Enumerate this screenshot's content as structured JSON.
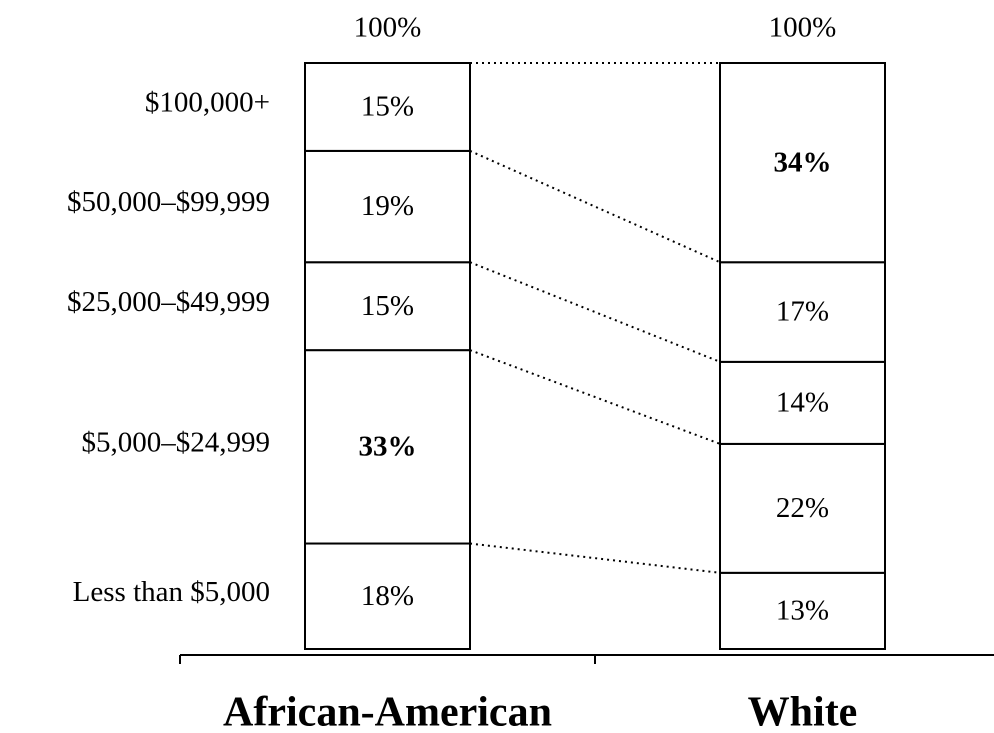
{
  "chart_data": {
    "type": "stacked_bar",
    "categories": [
      "African-American",
      "White"
    ],
    "series": [
      {
        "name": "Less than $5,000",
        "color": "#ffffff",
        "values": [
          18,
          13
        ],
        "value_labels": [
          "18%",
          "13%"
        ]
      },
      {
        "name": "$5,000–$24,999",
        "color": "#ffffff",
        "values": [
          33,
          22
        ],
        "value_labels": [
          "33%",
          "22%"
        ]
      },
      {
        "name": "$25,000–$49,999",
        "color": "#ffffff",
        "values": [
          15,
          14
        ],
        "value_labels": [
          "15%",
          "14%"
        ]
      },
      {
        "name": "$50,000–$99,999",
        "color": "#ffffff",
        "values": [
          19,
          17
        ],
        "value_labels": [
          "19%",
          "17%"
        ]
      },
      {
        "name": "$100,000+",
        "color": "#ffffff",
        "values": [
          15,
          34
        ],
        "value_labels": [
          "15%",
          "34%"
        ]
      }
    ],
    "totals": {
      "values": [
        100,
        100
      ],
      "value_labels": [
        "100%",
        "100%"
      ]
    },
    "ylim": [
      0,
      100
    ]
  }
}
